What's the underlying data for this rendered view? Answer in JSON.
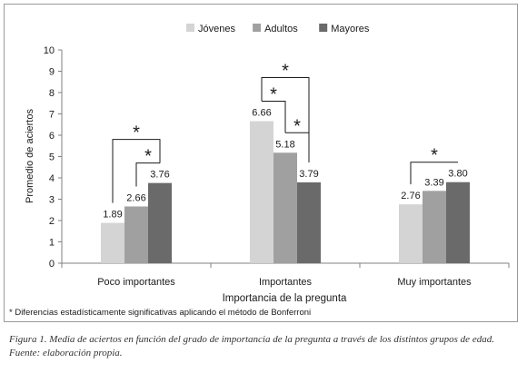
{
  "chart_data": {
    "type": "bar",
    "categories": [
      "Poco importantes",
      "Importantes",
      "Muy importantes"
    ],
    "series": [
      {
        "name": "Jóvenes",
        "color": "#d4d4d4",
        "values": [
          1.89,
          6.66,
          2.76
        ]
      },
      {
        "name": "Adultos",
        "color": "#a0a0a0",
        "values": [
          2.66,
          5.18,
          3.39
        ]
      },
      {
        "name": "Mayores",
        "color": "#6a6a6a",
        "values": [
          3.76,
          3.79,
          3.8
        ]
      }
    ],
    "data_labels": [
      [
        "1.89",
        "2.66",
        "3.76"
      ],
      [
        "6.66",
        "5.18",
        "3.79"
      ],
      [
        "2.76",
        "3.39",
        "3.80"
      ]
    ],
    "xlabel": "Importancia de la pregunta",
    "ylabel": "Promedio de aciertos",
    "ylim": [
      0,
      10
    ],
    "yticks": [
      "0",
      "1",
      "2",
      "3",
      "4",
      "5",
      "6",
      "7",
      "8",
      "9",
      "10"
    ],
    "grid": false,
    "legend_position": "top",
    "significance_marker": "*",
    "significance_brackets": [
      {
        "category": 0,
        "from": "Jóvenes",
        "to": "Mayores"
      },
      {
        "category": 0,
        "from": "Adultos",
        "to": "Mayores"
      },
      {
        "category": 1,
        "from": "Jóvenes",
        "to": "Mayores"
      },
      {
        "category": 1,
        "from": "Jóvenes",
        "to": "Adultos"
      },
      {
        "category": 1,
        "from": "Adultos",
        "to": "Mayores"
      },
      {
        "category": 2,
        "from": "Jóvenes",
        "to": "Mayores"
      }
    ]
  },
  "footnote": "* Diferencias estadísticamente significativas aplicando el método de Bonferroni",
  "caption": "Figura 1.  Media de aciertos en función del grado de importancia de la pregunta a través de los distintos grupos de edad.",
  "source": "Fuente: elaboración propia."
}
